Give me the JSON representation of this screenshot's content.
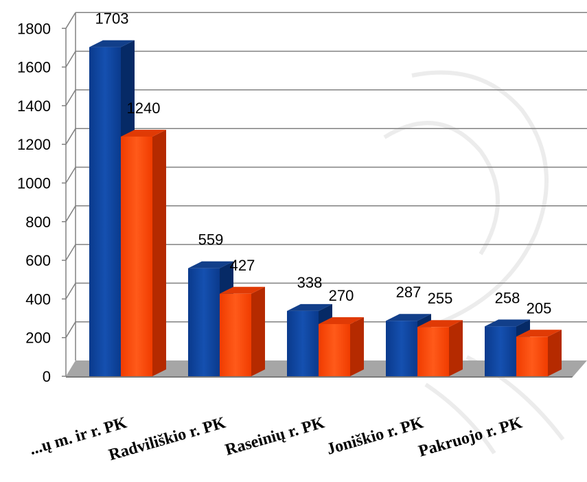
{
  "chart_data": {
    "type": "bar",
    "categories": [
      "...ų m. ir r. PK",
      "Radviliškio r. PK",
      "Raseinių r. PK",
      "Joniškio r. PK",
      "Pakruojo r. PK"
    ],
    "series": [
      {
        "values": [
          1703,
          559,
          338,
          287,
          258
        ],
        "color": "#0B3D91"
      },
      {
        "values": [
          1240,
          427,
          270,
          255,
          205
        ],
        "color": "#FF4A0A"
      }
    ],
    "yticks": [
      "0",
      "200",
      "400",
      "600",
      "800",
      "1000",
      "1200",
      "1400",
      "1600",
      "1800"
    ],
    "ylim": [
      0,
      1800
    ],
    "grid": true,
    "legend": "none",
    "style": "3d-clustered-column"
  }
}
